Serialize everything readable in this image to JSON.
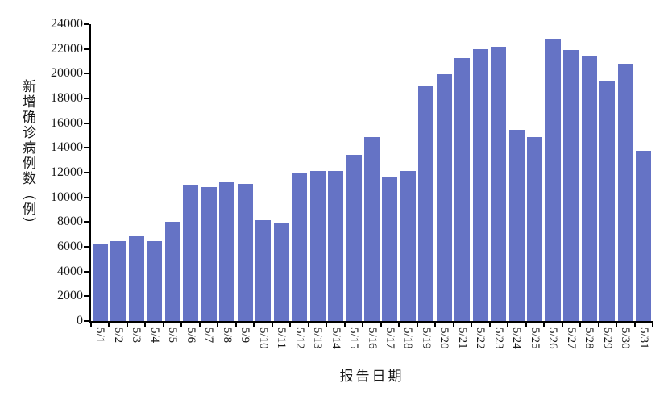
{
  "chart_data": {
    "type": "bar",
    "title": "",
    "xlabel": "报告日期",
    "ylabel": "新增确诊病例数（例）",
    "categories": [
      "5/1",
      "5/2",
      "5/3",
      "5/4",
      "5/5",
      "5/6",
      "5/7",
      "5/8",
      "5/9",
      "5/10",
      "5/11",
      "5/12",
      "5/13",
      "5/14",
      "5/15",
      "5/16",
      "5/17",
      "5/18",
      "5/19",
      "5/20",
      "5/21",
      "5/22",
      "5/23",
      "5/24",
      "5/25",
      "5/26",
      "5/27",
      "5/28",
      "5/29",
      "5/30",
      "5/31"
    ],
    "values": [
      6200,
      6450,
      6900,
      6450,
      8000,
      10950,
      10800,
      11250,
      11100,
      8150,
      7900,
      12000,
      12100,
      12100,
      13450,
      14850,
      11700,
      12150,
      19000,
      19950,
      21250,
      21950,
      22200,
      15450,
      14900,
      22800,
      21900,
      21450,
      19450,
      20800,
      13750
    ],
    "ylim": [
      0,
      24000
    ],
    "yticks": [
      0,
      2000,
      4000,
      6000,
      8000,
      10000,
      12000,
      14000,
      16000,
      18000,
      20000,
      22000,
      24000
    ],
    "grid": false,
    "legend": "none",
    "bar_color": "#6573C5",
    "axis_color": "#000000",
    "text_color": "#1A1A1A",
    "background": "#FFFFFF"
  }
}
